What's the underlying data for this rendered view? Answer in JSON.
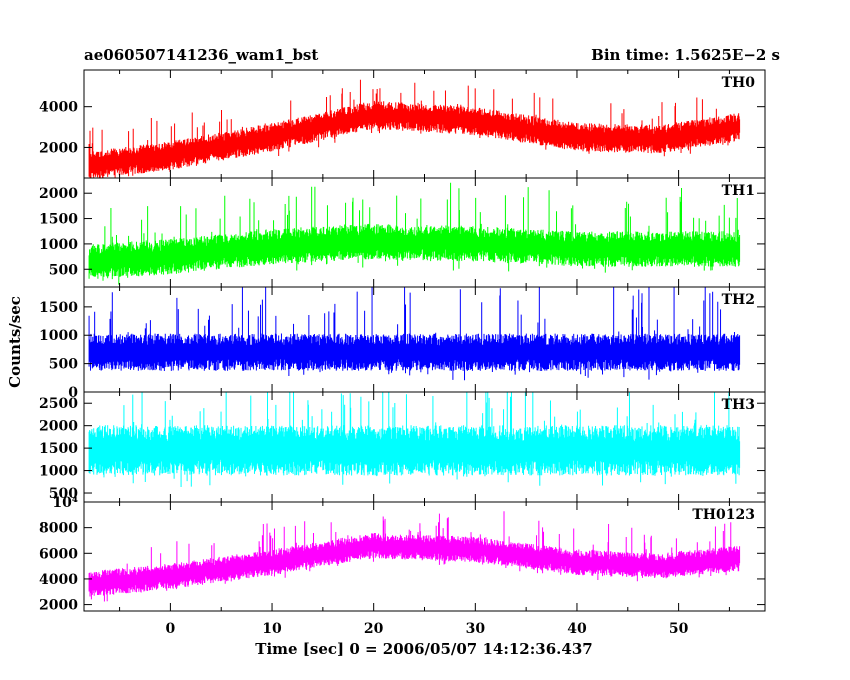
{
  "header": {
    "title": "ae060507141236_wam1_bst",
    "bin_time": "Bin time: 1.5625E−2 s"
  },
  "axes": {
    "ylabel": "Counts/sec",
    "xlabel": "Time [sec] 0 = 2006/05/07 14:12:36.437"
  },
  "chart_data": {
    "type": "line",
    "x_range": [
      -8,
      56
    ],
    "xlim": [
      -8.5,
      58.5
    ],
    "x_ticks": [
      0,
      10,
      20,
      30,
      40,
      50
    ],
    "panels": [
      {
        "name": "TH0",
        "color": "#ff0000",
        "ylim": [
          500,
          5800
        ],
        "y_ticks": [
          2000,
          4000
        ],
        "trend": [
          [
            -8,
            1100
          ],
          [
            0,
            1600
          ],
          [
            10,
            2500
          ],
          [
            20,
            3600
          ],
          [
            30,
            3300
          ],
          [
            40,
            2500
          ],
          [
            48,
            2400
          ],
          [
            56,
            3000
          ]
        ],
        "spread": 700,
        "spike": 1500
      },
      {
        "name": "TH1",
        "color": "#00ff00",
        "ylim": [
          150,
          2300
        ],
        "y_ticks": [
          500,
          1000,
          1500,
          2000
        ],
        "trend": [
          [
            -8,
            650
          ],
          [
            0,
            750
          ],
          [
            10,
            950
          ],
          [
            20,
            1050
          ],
          [
            30,
            1000
          ],
          [
            40,
            900
          ],
          [
            56,
            900
          ]
        ],
        "spread": 350,
        "spike": 900
      },
      {
        "name": "TH2",
        "color": "#0000ff",
        "ylim": [
          0,
          1850
        ],
        "y_ticks": [
          0,
          500,
          1000,
          1500
        ],
        "trend": [
          [
            -8,
            700
          ],
          [
            56,
            700
          ]
        ],
        "spread": 330,
        "spike": 1000
      },
      {
        "name": "TH3",
        "color": "#00ffff",
        "ylim": [
          300,
          2750
        ],
        "y_ticks": [
          500,
          1000,
          1500,
          2000,
          2500
        ],
        "trend": [
          [
            -8,
            1450
          ],
          [
            56,
            1450
          ]
        ],
        "spread": 560,
        "spike": 1150
      },
      {
        "name": "TH0123",
        "color": "#ff00ff",
        "ylim": [
          1500,
          10000
        ],
        "y_ticks": [
          2000,
          4000,
          6000,
          8000,
          10000
        ],
        "y_tick_labels": [
          "2000",
          "4000",
          "6000",
          "8000",
          "10⁴"
        ],
        "trend": [
          [
            -8,
            3600
          ],
          [
            0,
            4200
          ],
          [
            10,
            5300
          ],
          [
            20,
            6600
          ],
          [
            30,
            6300
          ],
          [
            40,
            5300
          ],
          [
            48,
            5000
          ],
          [
            56,
            5600
          ]
        ],
        "spread": 1000,
        "spike": 2400
      }
    ]
  }
}
